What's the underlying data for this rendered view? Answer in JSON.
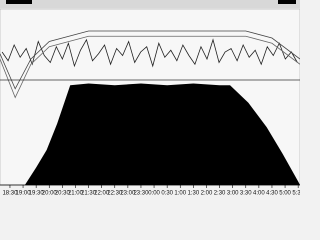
{
  "chart_data": {
    "type": "area",
    "xlim": [
      18.12,
      29.57
    ],
    "ylim": [
      0,
      100
    ],
    "xticks": [
      {
        "value": 18.5,
        "label": "18:30"
      },
      {
        "value": 19,
        "label": "19:00"
      },
      {
        "value": 19.5,
        "label": "19:30"
      },
      {
        "value": 20,
        "label": "20:00"
      },
      {
        "value": 20.5,
        "label": "20:30"
      },
      {
        "value": 21,
        "label": "21:00"
      },
      {
        "value": 21.5,
        "label": "21:30"
      },
      {
        "value": 22,
        "label": "22:00"
      },
      {
        "value": 22.5,
        "label": "22:30"
      },
      {
        "value": 23,
        "label": "23:00"
      },
      {
        "value": 23.5,
        "label": "23:30"
      },
      {
        "value": 24,
        "label": "0:00"
      },
      {
        "value": 24.5,
        "label": "0:30"
      },
      {
        "value": 25,
        "label": "1:00"
      },
      {
        "value": 25.5,
        "label": "1:30"
      },
      {
        "value": 26,
        "label": "2:00"
      },
      {
        "value": 26.5,
        "label": "2:30"
      },
      {
        "value": 27,
        "label": "3:00"
      },
      {
        "value": 27.5,
        "label": "3:30"
      },
      {
        "value": 28,
        "label": "4:00"
      },
      {
        "value": 28.5,
        "label": "4:30"
      },
      {
        "value": 29,
        "label": "5:00"
      },
      {
        "value": 29.5,
        "label": "5:30"
      }
    ],
    "series": [
      {
        "kind": "area",
        "color": "#000000",
        "x": [
          18.12,
          19.07,
          19.5,
          19.9,
          20.3,
          20.8,
          21.5,
          22.5,
          23.5,
          24.5,
          25.5,
          26.5,
          26.9,
          27.6,
          28.3,
          28.9,
          29.5,
          29.57
        ],
        "values": [
          0,
          0,
          10,
          20,
          35,
          57,
          58,
          57,
          58,
          57,
          58,
          57,
          57,
          47,
          33,
          18,
          2,
          0
        ]
      },
      {
        "kind": "line",
        "color": "#222222",
        "x": [
          18.2,
          18.43,
          18.66,
          18.89,
          19.12,
          19.35,
          19.58,
          19.81,
          20.04,
          20.27,
          20.5,
          20.73,
          20.96,
          21.19,
          21.42,
          21.65,
          21.88,
          22.11,
          22.34,
          22.57,
          22.8,
          23.03,
          23.26,
          23.49,
          23.72,
          23.95,
          24.18,
          24.41,
          24.64,
          24.87,
          25.1,
          25.33,
          25.56,
          25.79,
          26.02,
          26.25,
          26.48,
          26.71,
          26.94,
          27.17,
          27.4,
          27.63,
          27.86,
          28.09,
          28.32,
          28.55,
          28.78,
          29.01,
          29.24,
          29.47
        ],
        "values": [
          76,
          71,
          80,
          73,
          78,
          69,
          82,
          74,
          70,
          79,
          72,
          81,
          68,
          77,
          83,
          71,
          75,
          80,
          69,
          78,
          74,
          82,
          70,
          76,
          79,
          68,
          81,
          73,
          77,
          71,
          80,
          74,
          69,
          79,
          72,
          83,
          70,
          76,
          78,
          71,
          80,
          73,
          77,
          69,
          79,
          74,
          81,
          72,
          76,
          70
        ]
      },
      {
        "kind": "line",
        "color": "#444444",
        "x": [
          18.12,
          18.7,
          19.3,
          20.0,
          21.5,
          27.5,
          28.5,
          29.57
        ],
        "values": [
          75,
          55,
          72,
          82,
          88,
          88,
          84,
          72
        ]
      },
      {
        "kind": "line",
        "color": "#666666",
        "x": [
          18.12,
          18.7,
          19.3,
          20.0,
          21.5,
          27.5,
          28.5,
          29.57
        ],
        "values": [
          72,
          50,
          69,
          79,
          85,
          85,
          81,
          69
        ]
      },
      {
        "kind": "line",
        "color": "#333333",
        "x": [
          18.12,
          29.57
        ],
        "values": [
          60,
          60
        ]
      }
    ]
  }
}
